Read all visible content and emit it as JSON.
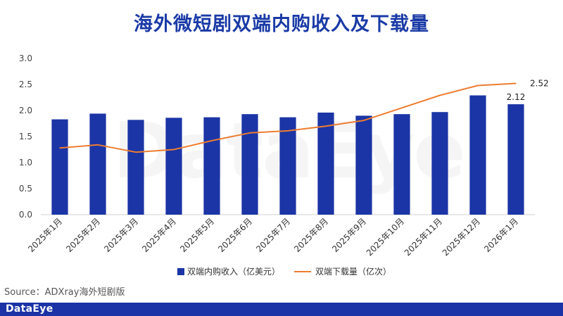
{
  "title": "海外微短剧双端内购收入及下载量",
  "watermark": "DataEye",
  "source": "Source：ADXray海外短剧版",
  "footer_logo": "DataEye",
  "colors": {
    "bar": "#1b35a6",
    "line": "#ed7d31",
    "title": "#1a3aa6",
    "footer": "#1b33a6"
  },
  "chart_data": {
    "type": "bar",
    "categories": [
      "2025年1月",
      "2025年2月",
      "2025年3月",
      "2025年4月",
      "2025年5月",
      "2025年6月",
      "2025年7月",
      "2025年8月",
      "2025年9月",
      "2025年10月",
      "2025年11月",
      "2025年12月",
      "2026年1月"
    ],
    "series": [
      {
        "name": "双端内购收入（亿美元）",
        "type": "bar",
        "values": [
          1.83,
          1.94,
          1.82,
          1.86,
          1.87,
          1.93,
          1.87,
          1.96,
          1.9,
          1.93,
          1.97,
          2.29,
          2.12
        ]
      },
      {
        "name": "双端下载量（亿次）",
        "type": "line",
        "values": [
          1.28,
          1.34,
          1.2,
          1.25,
          1.42,
          1.57,
          1.61,
          1.7,
          1.81,
          2.05,
          2.29,
          2.48,
          2.52
        ]
      }
    ],
    "y_ticks": [
      "0.0",
      "0.5",
      "1.0",
      "1.5",
      "2.0",
      "2.5",
      "3.0"
    ],
    "ylim": [
      0,
      3
    ],
    "data_labels": [
      {
        "series": 0,
        "index": 12,
        "text": "2.12"
      },
      {
        "series": 1,
        "index": 12,
        "text": "2.52"
      }
    ],
    "legend_position": "bottom",
    "grid": false
  }
}
